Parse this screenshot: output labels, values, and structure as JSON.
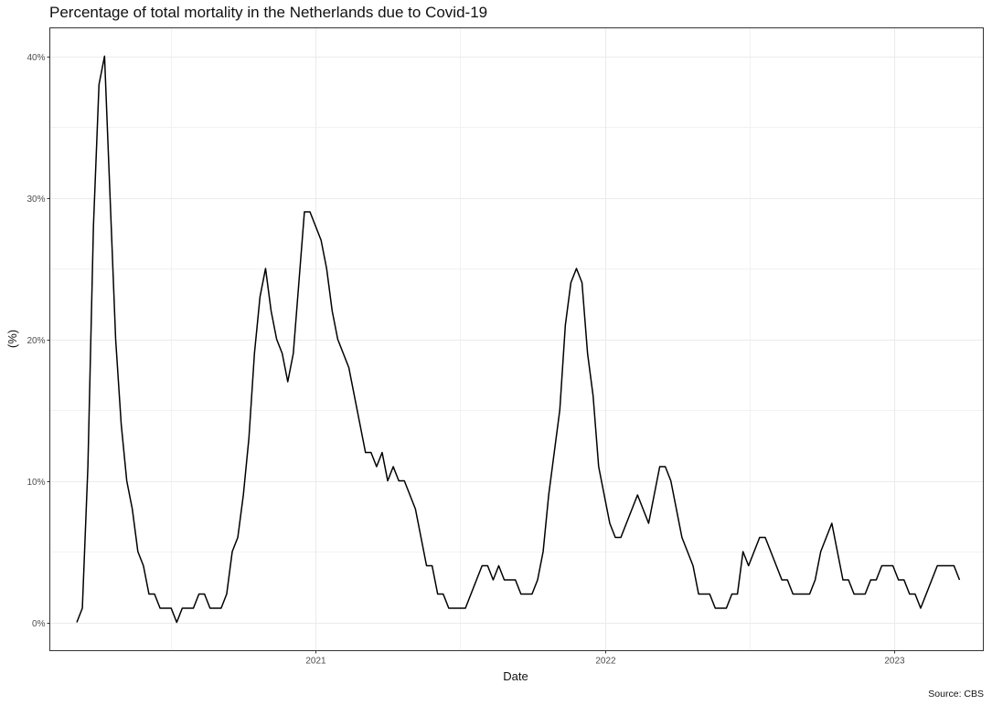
{
  "chart_data": {
    "type": "line",
    "title": "Percentage of total mortality in the Netherlands due to Covid-19",
    "xlabel": "Date",
    "ylabel": "(%)",
    "caption": "Source: CBS",
    "grid": true,
    "legend": "none",
    "line_color": "#000000",
    "xlim": [
      "2020-02-01",
      "2023-04-23"
    ],
    "ylim": [
      -2,
      42
    ],
    "x_ticks": [
      {
        "value": "2021-01-01",
        "label": "2021"
      },
      {
        "value": "2022-01-01",
        "label": "2022"
      },
      {
        "value": "2023-01-01",
        "label": "2023"
      }
    ],
    "y_ticks": [
      {
        "value": 0,
        "label": "0%"
      },
      {
        "value": 10,
        "label": "10%"
      },
      {
        "value": 20,
        "label": "20%"
      },
      {
        "value": 30,
        "label": "30%"
      },
      {
        "value": 40,
        "label": "40%"
      }
    ],
    "series": [
      {
        "start": "2020-03-06",
        "interval_days": 7,
        "values": [
          0,
          1,
          11,
          28,
          38,
          40,
          30,
          20,
          14,
          10,
          8,
          5,
          4,
          2,
          2,
          1,
          1,
          1,
          0,
          1,
          1,
          1,
          2,
          2,
          1,
          1,
          1,
          2,
          5,
          6,
          9,
          13,
          19,
          23,
          25,
          22,
          20,
          19,
          17,
          19,
          24,
          29,
          29,
          28,
          27,
          25,
          22,
          20,
          19,
          18,
          16,
          14,
          12,
          12,
          11,
          12,
          10,
          11,
          10,
          10,
          9,
          8,
          6,
          4,
          4,
          2,
          2,
          1,
          1,
          1,
          1,
          2,
          3,
          4,
          4,
          3,
          4,
          3,
          3,
          3,
          2,
          2,
          2,
          3,
          5,
          9,
          12,
          15,
          21,
          24,
          25,
          24,
          19,
          16,
          11,
          9,
          7,
          6,
          6,
          7,
          8,
          9,
          8,
          7,
          9,
          11,
          11,
          10,
          8,
          6,
          5,
          4,
          2,
          2,
          2,
          1,
          1,
          1,
          2,
          2,
          5,
          4,
          5,
          6,
          6,
          5,
          4,
          3,
          3,
          2,
          2,
          2,
          2,
          3,
          5,
          6,
          7,
          5,
          3,
          3,
          2,
          2,
          2,
          3,
          3,
          4,
          4,
          4,
          3,
          3,
          2,
          2,
          1,
          2,
          3,
          4,
          4,
          4,
          4,
          3
        ]
      }
    ]
  }
}
